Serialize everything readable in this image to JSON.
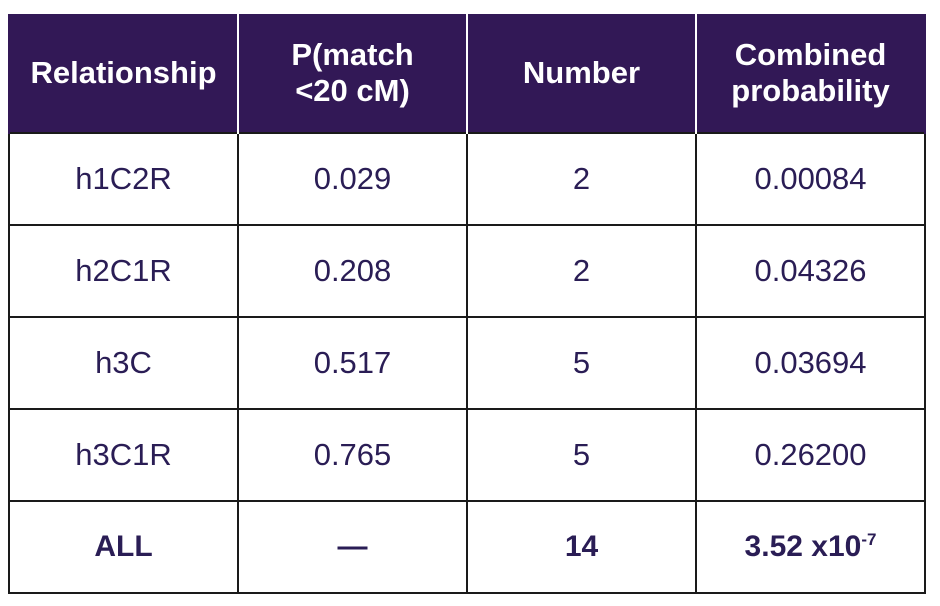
{
  "table": {
    "headers": {
      "relationship": "Relationship",
      "p_match_line1": "P(match",
      "p_match_line2": "<20 cM)",
      "number": "Number",
      "combined_line1": "Combined",
      "combined_line2": "probability"
    },
    "rows": [
      {
        "relationship": "h1C2R",
        "p_match": "0.029",
        "number": "2",
        "combined": "0.00084"
      },
      {
        "relationship": "h2C1R",
        "p_match": "0.208",
        "number": "2",
        "combined": "0.04326"
      },
      {
        "relationship": "h3C",
        "p_match": "0.517",
        "number": "5",
        "combined": "0.03694"
      },
      {
        "relationship": "h3C1R",
        "p_match": "0.765",
        "number": "5",
        "combined": "0.26200"
      }
    ],
    "total": {
      "relationship": "ALL",
      "p_match": "—",
      "number": "14",
      "combined_mantissa": "3.52 x10",
      "combined_exponent": "-7"
    }
  },
  "colors": {
    "header_bg": "#321856",
    "header_text": "#ffffff",
    "body_text": "#2a1d55",
    "grid": "#1a1a1a"
  }
}
